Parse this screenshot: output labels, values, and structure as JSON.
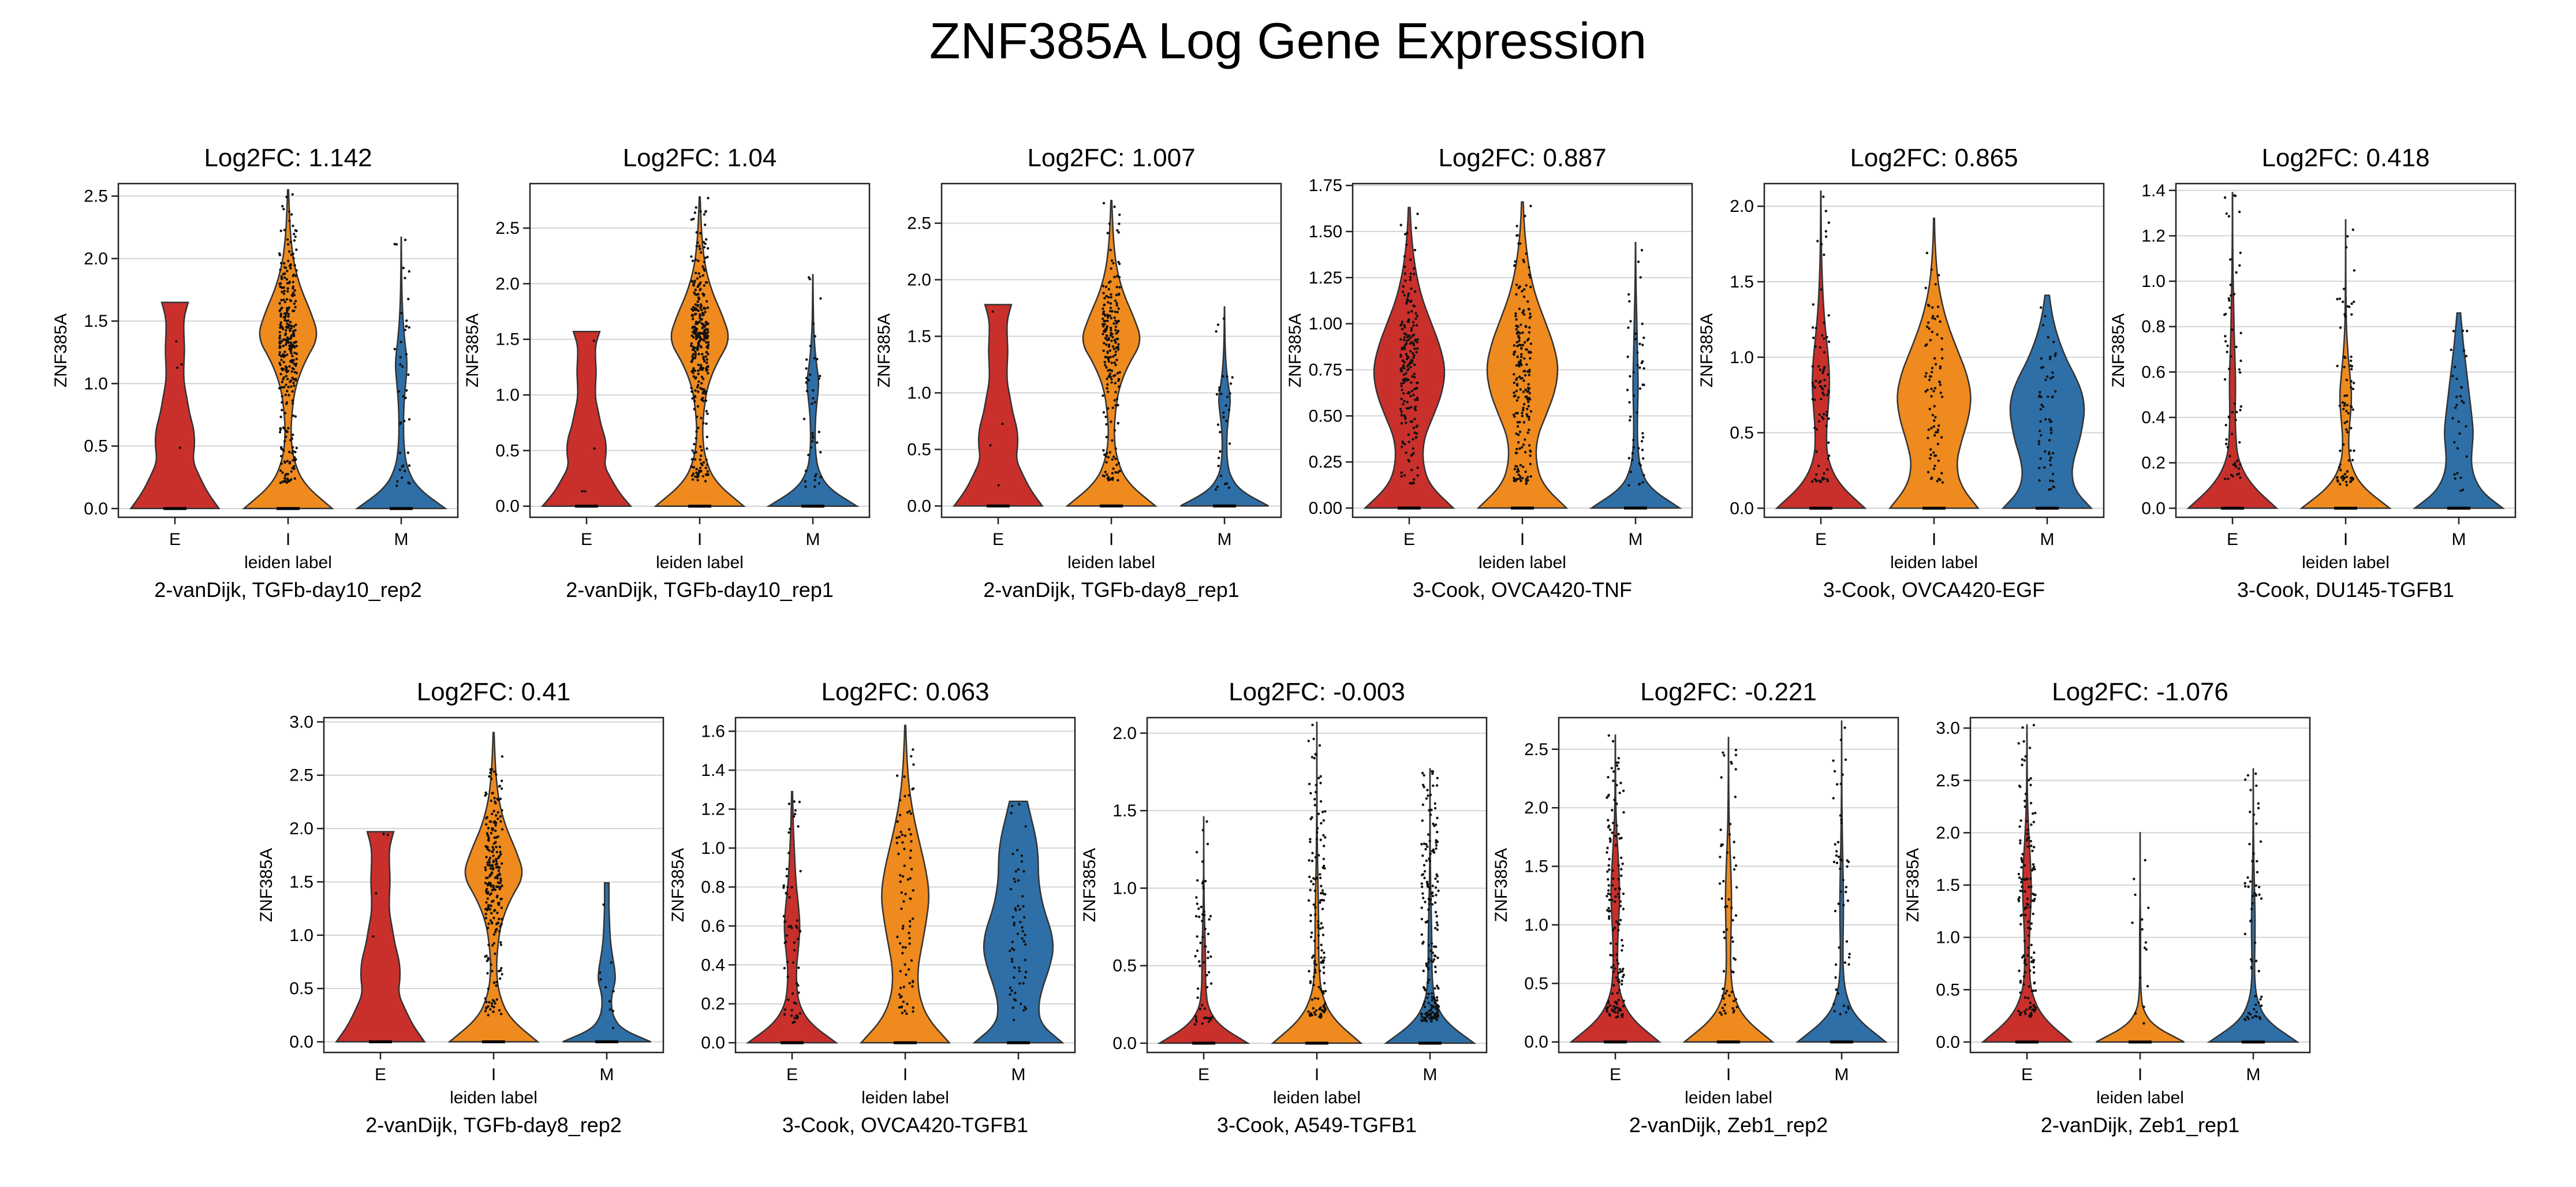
{
  "figure": {
    "title": "ZNF385A Log Gene Expression"
  },
  "colors": {
    "E": "#c9302c",
    "I": "#ef8a1e",
    "M": "#2e6fa7"
  },
  "chart_data": [
    {
      "type": "violin",
      "title": "Log2FC: 1.142",
      "subtitle": "2-vanDijk, TGFb-day10_rep2",
      "xlabel": "leiden label",
      "ylabel": "ZNF385A",
      "categories": [
        "E",
        "I",
        "M"
      ],
      "ylim": [
        -0.07,
        2.6
      ],
      "yticks": [
        0.0,
        0.5,
        1.0,
        1.5,
        2.0,
        2.5
      ],
      "yticklabels": [
        "0.0",
        "0.5",
        "1.0",
        "1.5",
        "2.0",
        "2.5"
      ],
      "grid": true,
      "violins": [
        {
          "category": "E",
          "max": 1.65,
          "profile": [
            1.0,
            0.74,
            0.56,
            0.4,
            0.45,
            0.43,
            0.33,
            0.27,
            0.2,
            0.2,
            0.22,
            0.2,
            0.2,
            0.3
          ],
          "points": 4
        },
        {
          "category": "I",
          "max": 2.55,
          "profile": [
            1.0,
            0.35,
            0.12,
            0.06,
            0.09,
            0.17,
            0.38,
            0.7,
            0.52,
            0.28,
            0.13,
            0.06,
            0.03,
            0.01
          ],
          "points": 320
        },
        {
          "category": "M",
          "max": 2.17,
          "profile": [
            1.0,
            0.35,
            0.12,
            0.06,
            0.05,
            0.06,
            0.1,
            0.14,
            0.08,
            0.04,
            0.02,
            0.01,
            0.005,
            0.003
          ],
          "points": 40
        }
      ]
    },
    {
      "type": "violin",
      "title": "Log2FC: 1.04",
      "subtitle": "2-vanDijk, TGFb-day10_rep1",
      "xlabel": "leiden label",
      "ylabel": "ZNF385A",
      "categories": [
        "E",
        "I",
        "M"
      ],
      "ylim": [
        -0.1,
        2.9
      ],
      "yticks": [
        0.0,
        0.5,
        1.0,
        1.5,
        2.0,
        2.5
      ],
      "yticklabels": [
        "0.0",
        "0.5",
        "1.0",
        "1.5",
        "2.0",
        "2.5"
      ],
      "grid": true,
      "violins": [
        {
          "category": "E",
          "max": 1.57,
          "profile": [
            1.0,
            0.74,
            0.56,
            0.4,
            0.45,
            0.43,
            0.33,
            0.27,
            0.2,
            0.2,
            0.22,
            0.2,
            0.2,
            0.3
          ],
          "points": 4
        },
        {
          "category": "I",
          "max": 2.78,
          "profile": [
            1.0,
            0.35,
            0.12,
            0.06,
            0.09,
            0.17,
            0.38,
            0.7,
            0.52,
            0.28,
            0.13,
            0.06,
            0.03,
            0.01
          ],
          "points": 320
        },
        {
          "category": "M",
          "max": 2.08,
          "profile": [
            1.0,
            0.35,
            0.12,
            0.06,
            0.05,
            0.06,
            0.1,
            0.14,
            0.08,
            0.04,
            0.02,
            0.01,
            0.005,
            0.003
          ],
          "points": 40
        }
      ]
    },
    {
      "type": "violin",
      "title": "Log2FC: 1.007",
      "subtitle": "2-vanDijk, TGFb-day8_rep1",
      "xlabel": "leiden label",
      "ylabel": "ZNF385A",
      "categories": [
        "E",
        "I",
        "M"
      ],
      "ylim": [
        -0.1,
        2.85
      ],
      "yticks": [
        0.0,
        0.5,
        1.0,
        1.5,
        2.0,
        2.5
      ],
      "yticklabels": [
        "0.0",
        "0.5",
        "1.0",
        "1.5",
        "2.0",
        "2.5"
      ],
      "grid": true,
      "violins": [
        {
          "category": "E",
          "max": 1.78,
          "profile": [
            1.0,
            0.74,
            0.56,
            0.4,
            0.45,
            0.43,
            0.33,
            0.27,
            0.2,
            0.2,
            0.22,
            0.2,
            0.2,
            0.3
          ],
          "points": 4
        },
        {
          "category": "I",
          "max": 2.7,
          "profile": [
            1.0,
            0.35,
            0.12,
            0.06,
            0.09,
            0.17,
            0.38,
            0.7,
            0.52,
            0.28,
            0.13,
            0.06,
            0.03,
            0.01
          ],
          "points": 200
        },
        {
          "category": "M",
          "max": 1.76,
          "profile": [
            1.0,
            0.35,
            0.12,
            0.06,
            0.05,
            0.06,
            0.1,
            0.14,
            0.08,
            0.04,
            0.02,
            0.01,
            0.005,
            0.003
          ],
          "points": 30
        }
      ]
    },
    {
      "type": "violin",
      "title": "Log2FC: 0.887",
      "subtitle": "3-Cook, OVCA420-TNF",
      "xlabel": "leiden label",
      "ylabel": "ZNF385A",
      "categories": [
        "E",
        "I",
        "M"
      ],
      "ylim": [
        -0.05,
        1.76
      ],
      "yticks": [
        0.0,
        0.25,
        0.5,
        0.75,
        1.0,
        1.25,
        1.5,
        1.75
      ],
      "yticklabels": [
        "0.00",
        "0.25",
        "0.50",
        "0.75",
        "1.00",
        "1.25",
        "1.50",
        "1.75"
      ],
      "grid": true,
      "violins": [
        {
          "category": "E",
          "max": 1.63,
          "profile": [
            1.0,
            0.45,
            0.3,
            0.33,
            0.55,
            0.75,
            0.82,
            0.7,
            0.5,
            0.3,
            0.17,
            0.09,
            0.04,
            0.02
          ],
          "points": 200
        },
        {
          "category": "I",
          "max": 1.66,
          "profile": [
            1.0,
            0.45,
            0.3,
            0.33,
            0.55,
            0.75,
            0.82,
            0.7,
            0.5,
            0.3,
            0.17,
            0.09,
            0.04,
            0.02
          ],
          "points": 200
        },
        {
          "category": "M",
          "max": 1.44,
          "profile": [
            1.0,
            0.3,
            0.1,
            0.05,
            0.04,
            0.05,
            0.06,
            0.05,
            0.04,
            0.03,
            0.02,
            0.01,
            0.005,
            0.003
          ],
          "points": 50
        }
      ]
    },
    {
      "type": "violin",
      "title": "Log2FC: 0.865",
      "subtitle": "3-Cook, OVCA420-EGF",
      "xlabel": "leiden label",
      "ylabel": "ZNF385A",
      "categories": [
        "E",
        "I",
        "M"
      ],
      "ylim": [
        -0.06,
        2.15
      ],
      "yticks": [
        0.0,
        0.5,
        1.0,
        1.5,
        2.0
      ],
      "yticklabels": [
        "0.0",
        "0.5",
        "1.0",
        "1.5",
        "2.0"
      ],
      "grid": true,
      "violins": [
        {
          "category": "E",
          "max": 2.1,
          "profile": [
            1.0,
            0.4,
            0.15,
            0.12,
            0.16,
            0.2,
            0.18,
            0.12,
            0.07,
            0.04,
            0.02,
            0.01,
            0.005,
            0.003
          ],
          "points": 80
        },
        {
          "category": "I",
          "max": 1.92,
          "profile": [
            1.0,
            0.6,
            0.5,
            0.62,
            0.78,
            0.85,
            0.75,
            0.55,
            0.35,
            0.2,
            0.1,
            0.05,
            0.02,
            0.01
          ],
          "points": 80
        },
        {
          "category": "M",
          "max": 1.41,
          "profile": [
            1.0,
            0.65,
            0.55,
            0.6,
            0.72,
            0.8,
            0.85,
            0.8,
            0.65,
            0.45,
            0.3,
            0.18,
            0.1,
            0.05
          ],
          "points": 60
        }
      ]
    },
    {
      "type": "violin",
      "title": "Log2FC: 0.418",
      "subtitle": "3-Cook, DU145-TGFB1",
      "xlabel": "leiden label",
      "ylabel": "ZNF385A",
      "categories": [
        "E",
        "I",
        "M"
      ],
      "ylim": [
        -0.04,
        1.43
      ],
      "yticks": [
        0.0,
        0.2,
        0.4,
        0.6,
        0.8,
        1.0,
        1.2,
        1.4
      ],
      "yticklabels": [
        "0.0",
        "0.2",
        "0.4",
        "0.6",
        "0.8",
        "1.0",
        "1.2",
        "1.4"
      ],
      "grid": true,
      "violins": [
        {
          "category": "E",
          "max": 1.39,
          "profile": [
            1.0,
            0.4,
            0.12,
            0.07,
            0.06,
            0.07,
            0.06,
            0.04,
            0.03,
            0.02,
            0.01,
            0.005,
            0.003,
            0.002
          ],
          "points": 60
        },
        {
          "category": "I",
          "max": 1.27,
          "profile": [
            1.0,
            0.35,
            0.1,
            0.06,
            0.1,
            0.14,
            0.1,
            0.05,
            0.02,
            0.01,
            0.005,
            0.003,
            0.002,
            0.001
          ],
          "points": 80
        },
        {
          "category": "M",
          "max": 0.86,
          "profile": [
            1.0,
            0.55,
            0.35,
            0.28,
            0.3,
            0.33,
            0.3,
            0.26,
            0.22,
            0.18,
            0.14,
            0.1,
            0.07,
            0.04
          ],
          "points": 30
        }
      ]
    },
    {
      "type": "violin",
      "title": "Log2FC: 0.41",
      "subtitle": "2-vanDijk, TGFb-day8_rep2",
      "xlabel": "leiden label",
      "ylabel": "ZNF385A",
      "categories": [
        "E",
        "I",
        "M"
      ],
      "ylim": [
        -0.1,
        3.04
      ],
      "yticks": [
        0.0,
        0.5,
        1.0,
        1.5,
        2.0,
        2.5,
        3.0
      ],
      "yticklabels": [
        "0.0",
        "0.5",
        "1.0",
        "1.5",
        "2.0",
        "2.5",
        "3.0"
      ],
      "grid": true,
      "violins": [
        {
          "category": "E",
          "max": 1.97,
          "profile": [
            1.0,
            0.74,
            0.56,
            0.4,
            0.45,
            0.43,
            0.33,
            0.27,
            0.2,
            0.2,
            0.22,
            0.2,
            0.2,
            0.3
          ],
          "points": 4
        },
        {
          "category": "I",
          "max": 2.9,
          "profile": [
            1.0,
            0.35,
            0.12,
            0.06,
            0.09,
            0.17,
            0.38,
            0.7,
            0.52,
            0.28,
            0.13,
            0.06,
            0.03,
            0.01
          ],
          "points": 250
        },
        {
          "category": "M",
          "max": 1.49,
          "profile": [
            1.0,
            0.35,
            0.15,
            0.1,
            0.12,
            0.2,
            0.18,
            0.13,
            0.09,
            0.07,
            0.06,
            0.05,
            0.05,
            0.05
          ],
          "points": 10
        }
      ]
    },
    {
      "type": "violin",
      "title": "Log2FC: 0.063",
      "subtitle": "3-Cook, OVCA420-TGFB1",
      "xlabel": "leiden label",
      "ylabel": "ZNF385A",
      "categories": [
        "E",
        "I",
        "M"
      ],
      "ylim": [
        -0.05,
        1.67
      ],
      "yticks": [
        0.0,
        0.2,
        0.4,
        0.6,
        0.8,
        1.0,
        1.2,
        1.4,
        1.6
      ],
      "yticklabels": [
        "0.0",
        "0.2",
        "0.4",
        "0.6",
        "0.8",
        "1.0",
        "1.2",
        "1.4",
        "1.6"
      ],
      "grid": true,
      "violins": [
        {
          "category": "E",
          "max": 1.29,
          "profile": [
            1.0,
            0.4,
            0.15,
            0.1,
            0.1,
            0.15,
            0.18,
            0.15,
            0.1,
            0.07,
            0.05,
            0.03,
            0.02,
            0.01
          ],
          "points": 60
        },
        {
          "category": "I",
          "max": 1.63,
          "profile": [
            1.0,
            0.5,
            0.3,
            0.28,
            0.38,
            0.48,
            0.55,
            0.48,
            0.35,
            0.22,
            0.12,
            0.06,
            0.03,
            0.01
          ],
          "points": 80
        },
        {
          "category": "M",
          "max": 1.24,
          "profile": [
            1.0,
            0.5,
            0.45,
            0.55,
            0.7,
            0.8,
            0.75,
            0.6,
            0.5,
            0.45,
            0.45,
            0.4,
            0.3,
            0.2
          ],
          "points": 60
        }
      ]
    },
    {
      "type": "violin",
      "title": "Log2FC: -0.003",
      "subtitle": "3-Cook, A549-TGFB1",
      "xlabel": "leiden label",
      "ylabel": "ZNF385A",
      "categories": [
        "E",
        "I",
        "M"
      ],
      "ylim": [
        -0.06,
        2.1
      ],
      "yticks": [
        0.0,
        0.5,
        1.0,
        1.5,
        2.0
      ],
      "yticklabels": [
        "0.0",
        "0.5",
        "1.0",
        "1.5",
        "2.0"
      ],
      "grid": true,
      "violins": [
        {
          "category": "E",
          "max": 1.46,
          "profile": [
            1.0,
            0.35,
            0.1,
            0.05,
            0.04,
            0.04,
            0.03,
            0.02,
            0.01,
            0.005,
            0.003,
            0.002,
            0.001,
            0.001
          ],
          "points": 60
        },
        {
          "category": "I",
          "max": 2.07,
          "profile": [
            1.0,
            0.35,
            0.1,
            0.05,
            0.04,
            0.04,
            0.03,
            0.02,
            0.01,
            0.005,
            0.003,
            0.002,
            0.001,
            0.001
          ],
          "points": 150
        },
        {
          "category": "M",
          "max": 1.77,
          "profile": [
            1.0,
            0.35,
            0.1,
            0.05,
            0.04,
            0.04,
            0.03,
            0.02,
            0.01,
            0.005,
            0.003,
            0.002,
            0.001,
            0.001
          ],
          "points": 200
        }
      ]
    },
    {
      "type": "violin",
      "title": "Log2FC: -0.221",
      "subtitle": "2-vanDijk, Zeb1_rep2",
      "xlabel": "leiden label",
      "ylabel": "ZNF385A",
      "categories": [
        "E",
        "I",
        "M"
      ],
      "ylim": [
        -0.09,
        2.77
      ],
      "yticks": [
        0.0,
        0.5,
        1.0,
        1.5,
        2.0,
        2.5
      ],
      "yticklabels": [
        "0.0",
        "0.5",
        "1.0",
        "1.5",
        "2.0",
        "2.5"
      ],
      "grid": true,
      "violins": [
        {
          "category": "E",
          "max": 2.62,
          "profile": [
            1.0,
            0.35,
            0.1,
            0.05,
            0.05,
            0.07,
            0.1,
            0.09,
            0.06,
            0.03,
            0.01,
            0.005,
            0.003,
            0.001
          ],
          "points": 150
        },
        {
          "category": "I",
          "max": 2.6,
          "profile": [
            1.0,
            0.35,
            0.1,
            0.05,
            0.05,
            0.06,
            0.07,
            0.06,
            0.04,
            0.02,
            0.01,
            0.005,
            0.003,
            0.001
          ],
          "points": 60
        },
        {
          "category": "M",
          "max": 2.74,
          "profile": [
            1.0,
            0.3,
            0.08,
            0.03,
            0.03,
            0.04,
            0.04,
            0.03,
            0.02,
            0.01,
            0.005,
            0.003,
            0.002,
            0.001
          ],
          "points": 50
        }
      ]
    },
    {
      "type": "violin",
      "title": "Log2FC: -1.076",
      "subtitle": "2-vanDijk, Zeb1_rep1",
      "xlabel": "leiden label",
      "ylabel": "ZNF385A",
      "categories": [
        "E",
        "I",
        "M"
      ],
      "ylim": [
        -0.1,
        3.1
      ],
      "yticks": [
        0.0,
        0.5,
        1.0,
        1.5,
        2.0,
        2.5,
        3.0
      ],
      "yticklabels": [
        "0.0",
        "0.5",
        "1.0",
        "1.5",
        "2.0",
        "2.5",
        "3.0"
      ],
      "grid": true,
      "violins": [
        {
          "category": "E",
          "max": 3.03,
          "profile": [
            1.0,
            0.35,
            0.1,
            0.05,
            0.05,
            0.07,
            0.1,
            0.09,
            0.06,
            0.03,
            0.01,
            0.005,
            0.003,
            0.001
          ],
          "points": 150
        },
        {
          "category": "I",
          "max": 2.0,
          "profile": [
            1.0,
            0.3,
            0.06,
            0.02,
            0.01,
            0.01,
            0.01,
            0.01,
            0.005,
            0.003,
            0.002,
            0.001,
            0.001,
            0.001
          ],
          "points": 15
        },
        {
          "category": "M",
          "max": 2.61,
          "profile": [
            1.0,
            0.3,
            0.08,
            0.03,
            0.03,
            0.04,
            0.04,
            0.03,
            0.02,
            0.01,
            0.005,
            0.003,
            0.002,
            0.001
          ],
          "points": 60
        }
      ]
    }
  ]
}
